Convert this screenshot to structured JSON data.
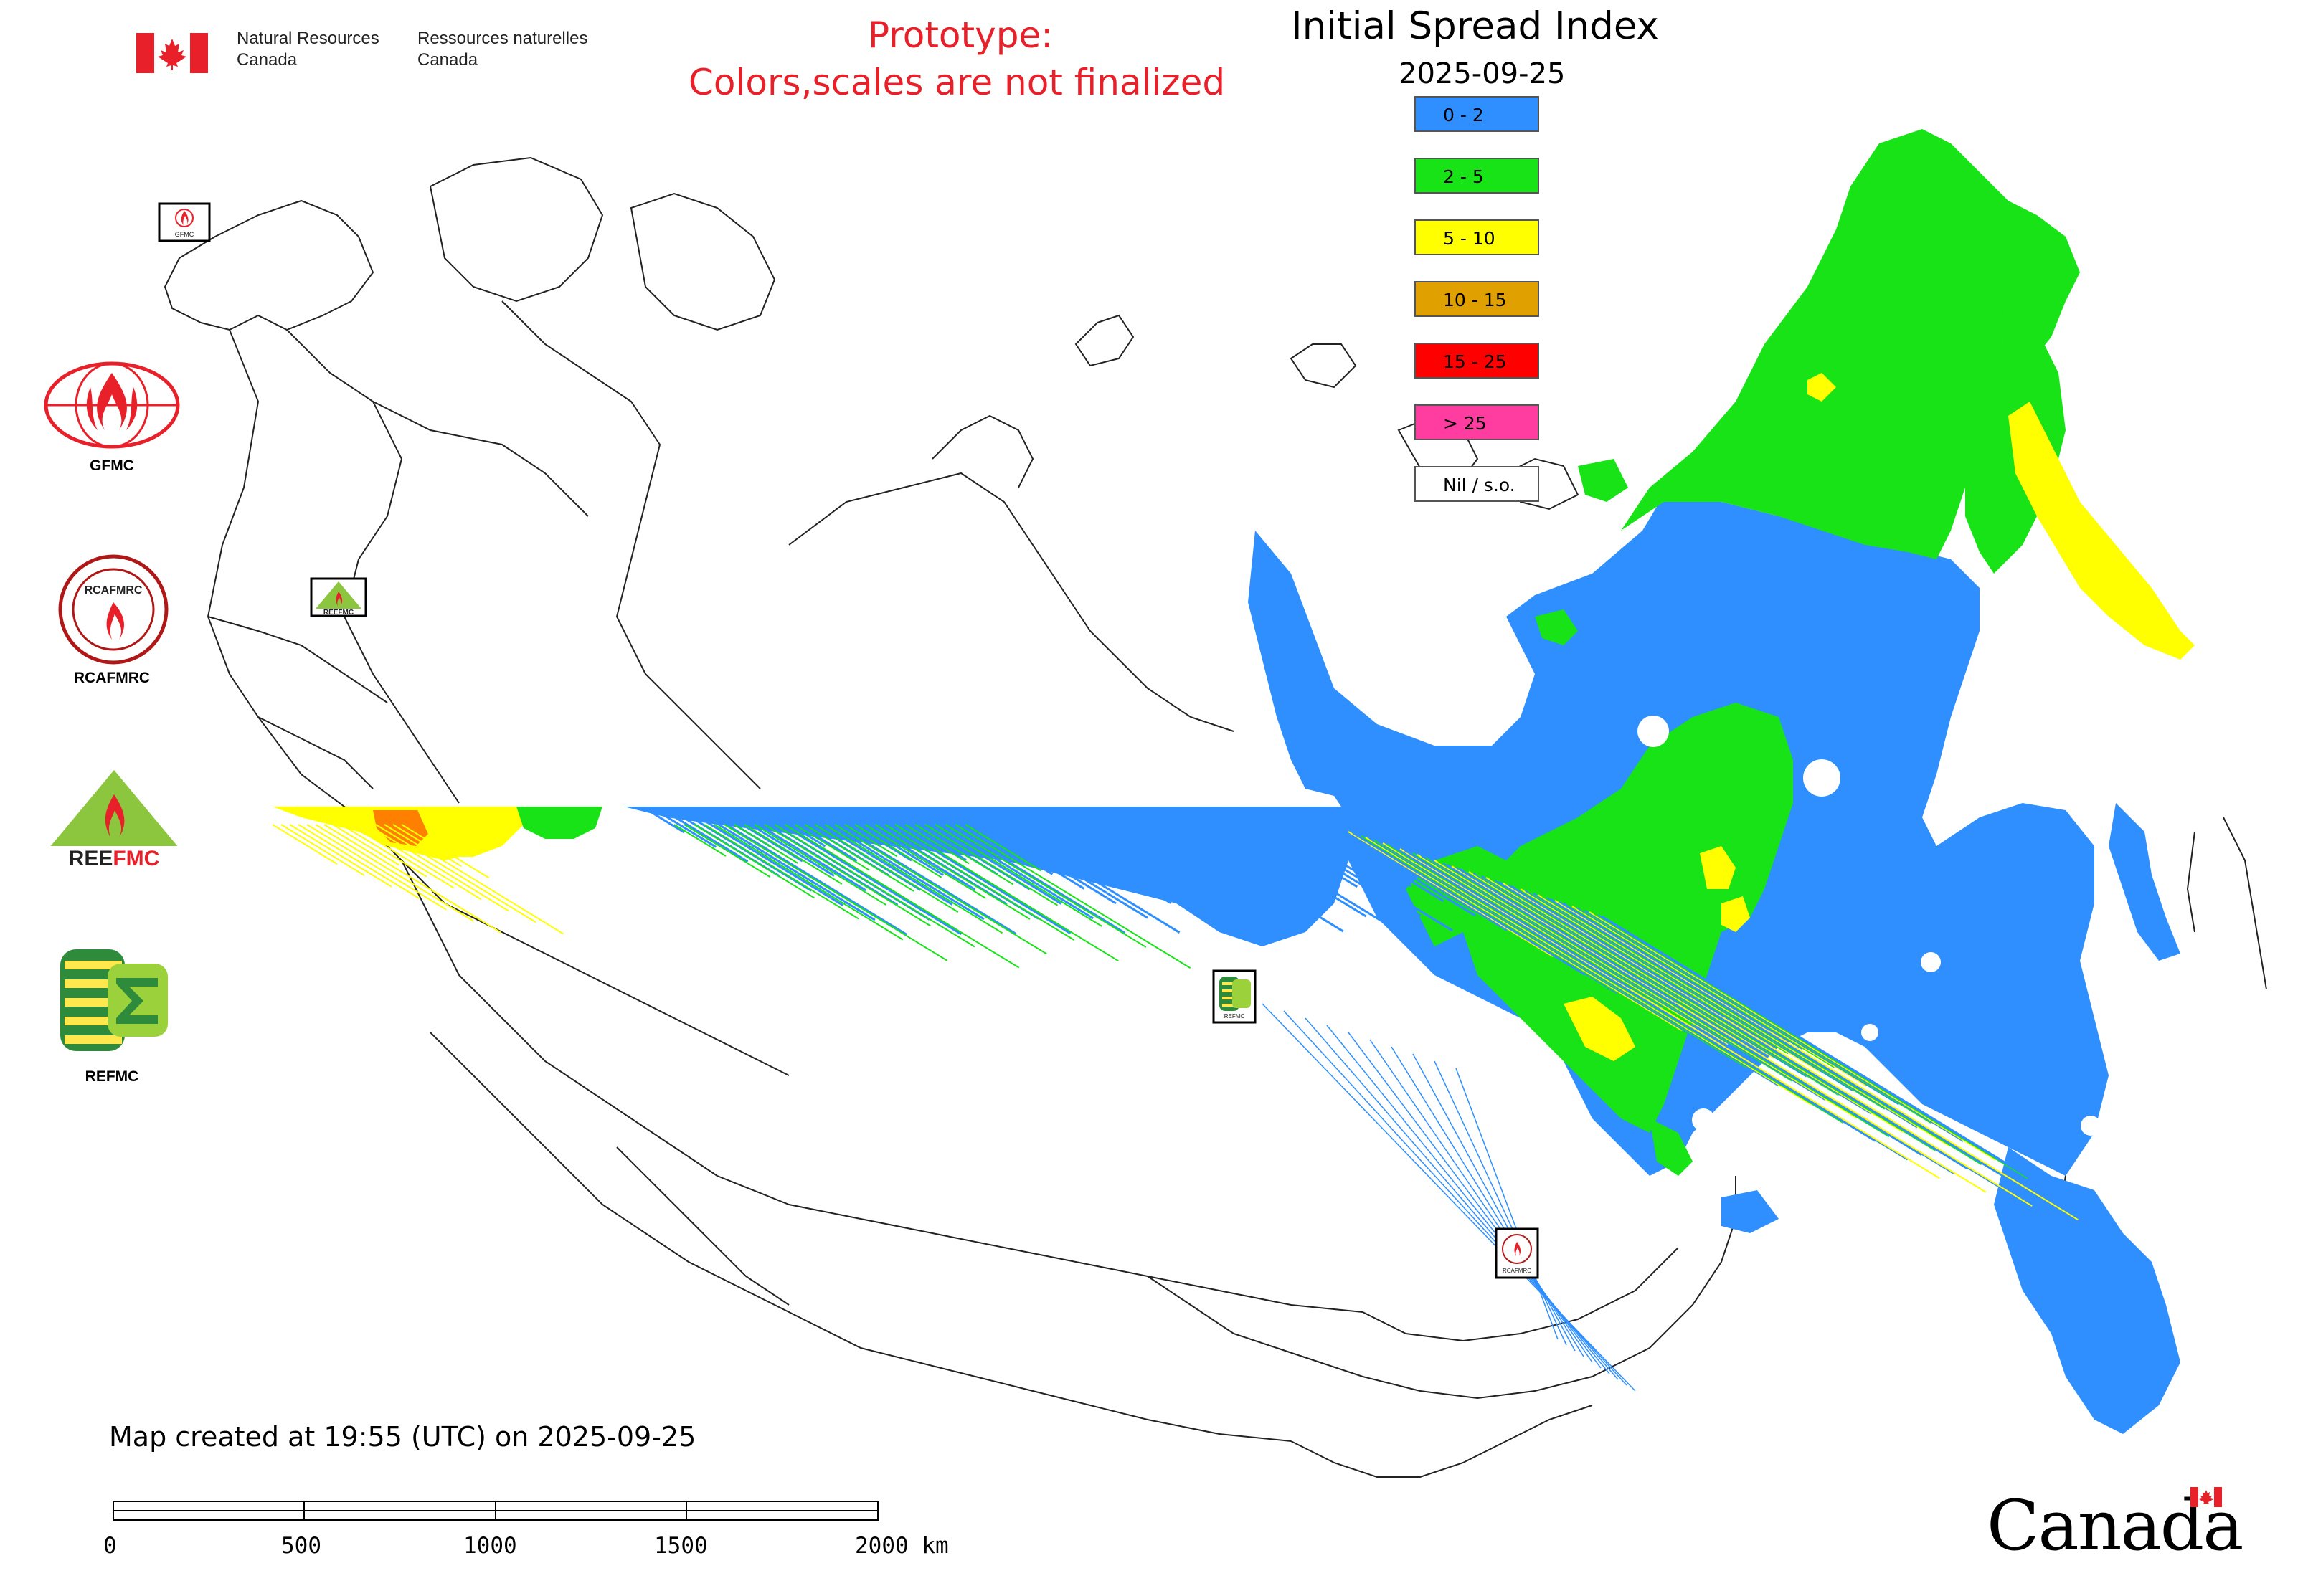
{
  "header": {
    "agency_en_line1": "Natural Resources",
    "agency_en_line2": "Canada",
    "agency_fr_line1": "Ressources naturelles",
    "agency_fr_line2": "Canada",
    "prototype_line1": "Prototype:",
    "prototype_line2": "Colors,scales are not finalized",
    "map_title": "Initial Spread Index",
    "map_date": "2025-09-25"
  },
  "legend": {
    "items": [
      {
        "label": "0 - 2",
        "color": "#2f8fff"
      },
      {
        "label": "2 - 5",
        "color": "#17e317"
      },
      {
        "label": "5 - 10",
        "color": "#ffff00"
      },
      {
        "label": "10 - 15",
        "color": "#e0a000"
      },
      {
        "label": "15 - 25",
        "color": "#ff0000"
      },
      {
        "label": "> 25",
        "color": "#ff3ca0"
      },
      {
        "label": "Nil / s.o.",
        "color": "#ffffff"
      }
    ]
  },
  "side_logos": [
    {
      "name": "GFMC",
      "icon": "gfmc-flame-globe-icon"
    },
    {
      "name": "RCAFMRC",
      "icon": "rcafmrc-seal-icon"
    },
    {
      "name": "REEFMC",
      "icon": "reefmc-triangle-icon"
    },
    {
      "name": "REFMC",
      "icon": "refmc-sigma-icon"
    }
  ],
  "map_markers": [
    {
      "name": "GFMC",
      "icon": "gfmc-marker-icon"
    },
    {
      "name": "REEFMC",
      "icon": "reefmc-marker-icon"
    },
    {
      "name": "REFMC",
      "icon": "refmc-marker-icon"
    },
    {
      "name": "RCAFMRC",
      "icon": "rcafmrc-marker-icon"
    }
  ],
  "footer": {
    "created_text": "Map created at 19:55 (UTC) on 2025-09-25",
    "scale_labels": [
      "0",
      "500",
      "1000",
      "1500",
      "2000 km"
    ],
    "wordmark": "Canada"
  },
  "colors": {
    "prototype_red": "#e8202a",
    "flag_red": "#e8202a",
    "outline": "#222222"
  }
}
